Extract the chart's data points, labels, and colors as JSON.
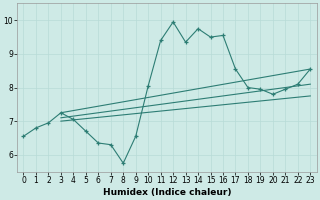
{
  "xlabel": "Humidex (Indice chaleur)",
  "xlim": [
    -0.5,
    23.5
  ],
  "ylim": [
    5.5,
    10.5
  ],
  "yticks": [
    6,
    7,
    8,
    9,
    10
  ],
  "xticks": [
    0,
    1,
    2,
    3,
    4,
    5,
    6,
    7,
    8,
    9,
    10,
    11,
    12,
    13,
    14,
    15,
    16,
    17,
    18,
    19,
    20,
    21,
    22,
    23
  ],
  "bg_color": "#ceeae6",
  "line_color": "#2d7d74",
  "grid_color": "#b8dbd7",
  "line1_x": [
    0,
    1,
    2,
    3,
    4,
    5,
    6,
    7,
    8,
    9,
    10,
    11,
    12,
    13,
    14,
    15,
    16,
    17,
    18,
    19,
    20,
    21,
    22,
    23
  ],
  "line1_y": [
    6.55,
    6.8,
    6.95,
    7.25,
    7.05,
    6.7,
    6.35,
    6.3,
    5.75,
    6.55,
    8.05,
    9.4,
    9.95,
    9.35,
    9.75,
    9.5,
    9.55,
    8.55,
    8.0,
    7.95,
    7.8,
    7.95,
    8.1,
    8.55
  ],
  "line2_x": [
    3,
    23
  ],
  "line2_y": [
    7.25,
    8.55
  ],
  "line3_x": [
    3,
    23
  ],
  "line3_y": [
    7.1,
    8.1
  ],
  "line4_x": [
    3,
    23
  ],
  "line4_y": [
    7.0,
    7.75
  ],
  "marker_x": [
    3,
    4,
    10,
    11,
    12,
    13,
    14,
    15,
    16,
    17,
    18,
    19,
    20,
    21,
    22,
    23
  ],
  "marker_y": [
    7.25,
    7.05,
    8.05,
    9.4,
    9.95,
    9.35,
    9.75,
    9.5,
    9.55,
    8.55,
    8.0,
    7.95,
    7.8,
    7.95,
    8.1,
    8.55
  ]
}
